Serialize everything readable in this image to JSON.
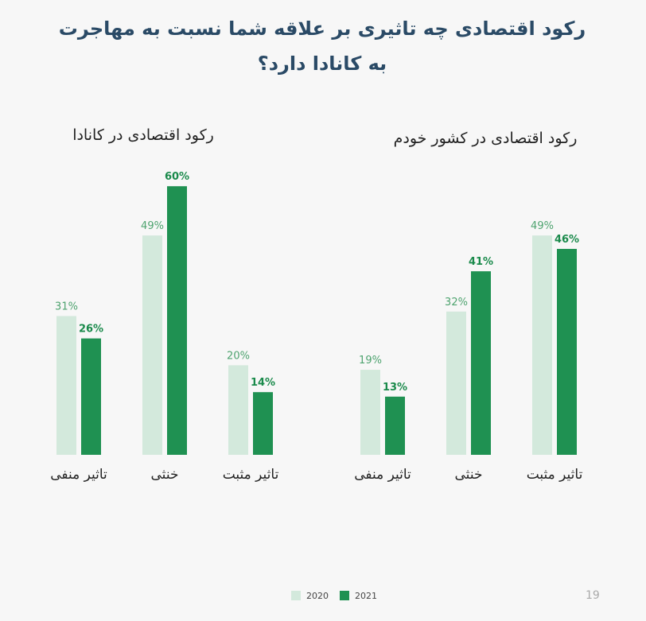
{
  "title": "رکود اقتصادی چه تاثیری بر علاقه شما نسبت به مهاجرت به کانادا دارد؟",
  "legend": {
    "series_2020": "2020",
    "series_2021": "2021"
  },
  "page_number": "19",
  "colors": {
    "light": "#d3e9dc",
    "dark": "#1f9152",
    "label_light": "#4ea36f",
    "label_dark": "#1a8a4b",
    "title": "#2a4a66"
  },
  "chart_data": [
    {
      "type": "bar",
      "title": "رکود اقتصادی در کانادا",
      "categories": [
        "تاثیر منفی",
        "خنثی",
        "تاثیر مثبت"
      ],
      "series": [
        {
          "name": "2020",
          "values": [
            31,
            49,
            20
          ]
        },
        {
          "name": "2021",
          "values": [
            26,
            60,
            14
          ]
        }
      ],
      "value_suffix": "%",
      "ylim": [
        0,
        60
      ],
      "grid": false,
      "legend": "bottom-center"
    },
    {
      "type": "bar",
      "title": "رکود اقتصادی در کشور خودم",
      "categories": [
        "تاثیر منفی",
        "خنثی",
        "تاثیر مثبت"
      ],
      "series": [
        {
          "name": "2020",
          "values": [
            19,
            32,
            49
          ]
        },
        {
          "name": "2021",
          "values": [
            13,
            41,
            46
          ]
        }
      ],
      "value_suffix": "%",
      "ylim": [
        0,
        60
      ],
      "grid": false,
      "legend": "bottom-center"
    }
  ]
}
